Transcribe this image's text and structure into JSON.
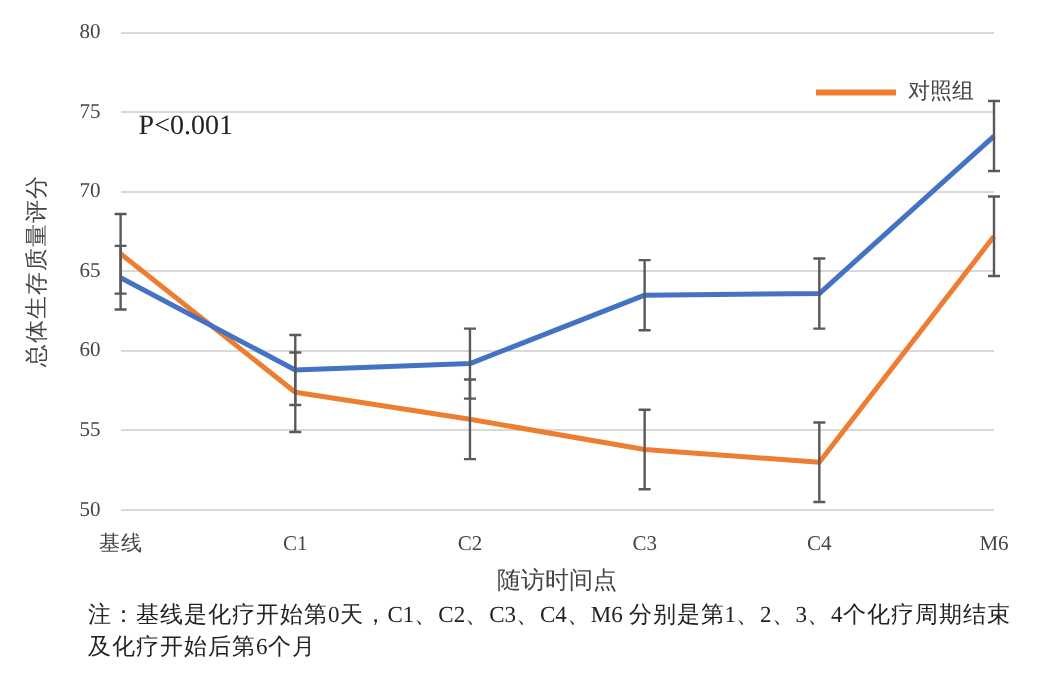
{
  "chart_data": {
    "type": "line",
    "categories": [
      "基线",
      "C1",
      "C2",
      "C3",
      "C4",
      "M6"
    ],
    "series": [
      {
        "color": "#4472c4",
        "values": [
          64.6,
          58.8,
          59.2,
          63.5,
          63.6,
          73.5
        ],
        "errors": [
          2.0,
          2.2,
          2.2,
          2.2,
          2.2,
          2.2
        ]
      },
      {
        "name": "对照组",
        "color": "#ed7d31",
        "values": [
          66.1,
          57.4,
          55.7,
          53.8,
          53.0,
          67.2
        ],
        "errors": [
          2.5,
          2.5,
          2.5,
          2.5,
          2.5,
          2.5
        ]
      }
    ],
    "xlabel": "随访时间点",
    "ylabel": "总体生存质量评分",
    "ylim": [
      50,
      80
    ],
    "yticks": [
      50,
      55,
      60,
      65,
      70,
      75,
      80
    ],
    "grid": "y",
    "legend": "top right",
    "marker": "none",
    "line_style": "solid",
    "annotations": [
      "P<0.001",
      "注：基线是化疗开始第0天，C1、C2、C3、C4、M6 分别是第1、2、3、4个化疗周期结束及化疗开始后第6个月"
    ]
  }
}
